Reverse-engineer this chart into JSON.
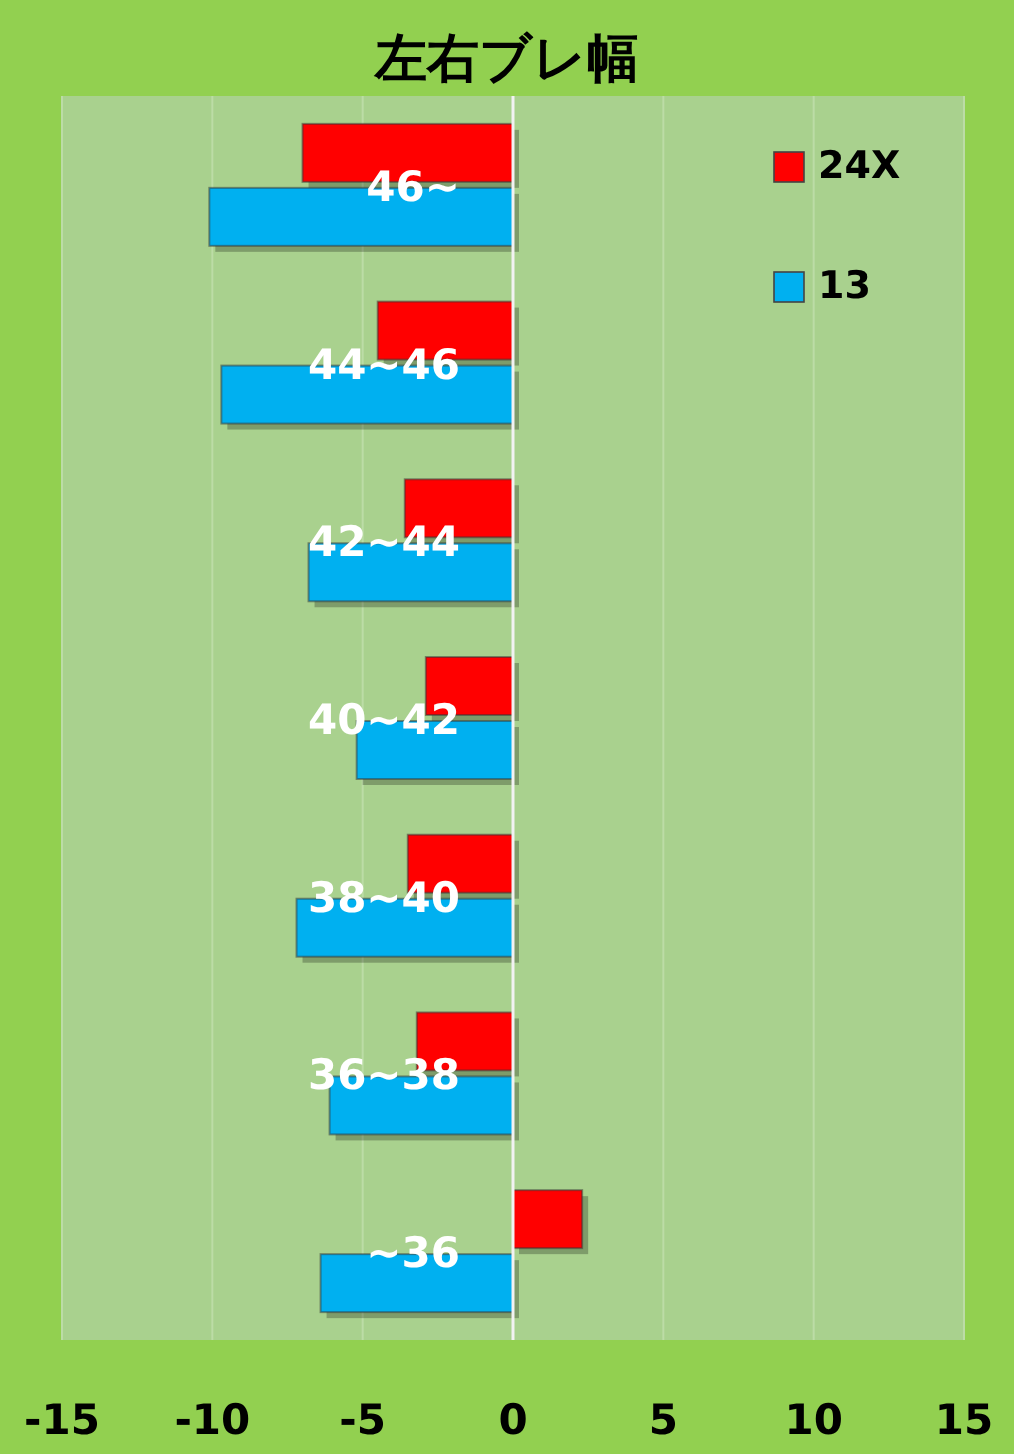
{
  "chart_data": {
    "type": "bar",
    "orientation": "horizontal",
    "title": "左右ブレ幅",
    "categories": [
      "46~",
      "44~46",
      "42~44",
      "40~42",
      "38~40",
      "36~38",
      "~36"
    ],
    "series": [
      {
        "name": "24X",
        "color": "#ff0000",
        "values": [
          -7.0,
          -4.5,
          -3.6,
          -2.9,
          -3.5,
          -3.2,
          2.3
        ]
      },
      {
        "name": "13",
        "color": "#00b0f0",
        "values": [
          -10.1,
          -9.7,
          -6.8,
          -5.2,
          -7.2,
          -6.1,
          -6.4
        ]
      }
    ],
    "xlim": [
      -15,
      15
    ],
    "xticks": [
      -15,
      -10,
      -5,
      0,
      5,
      10,
      15
    ],
    "grid": "x",
    "legend": "top right"
  }
}
